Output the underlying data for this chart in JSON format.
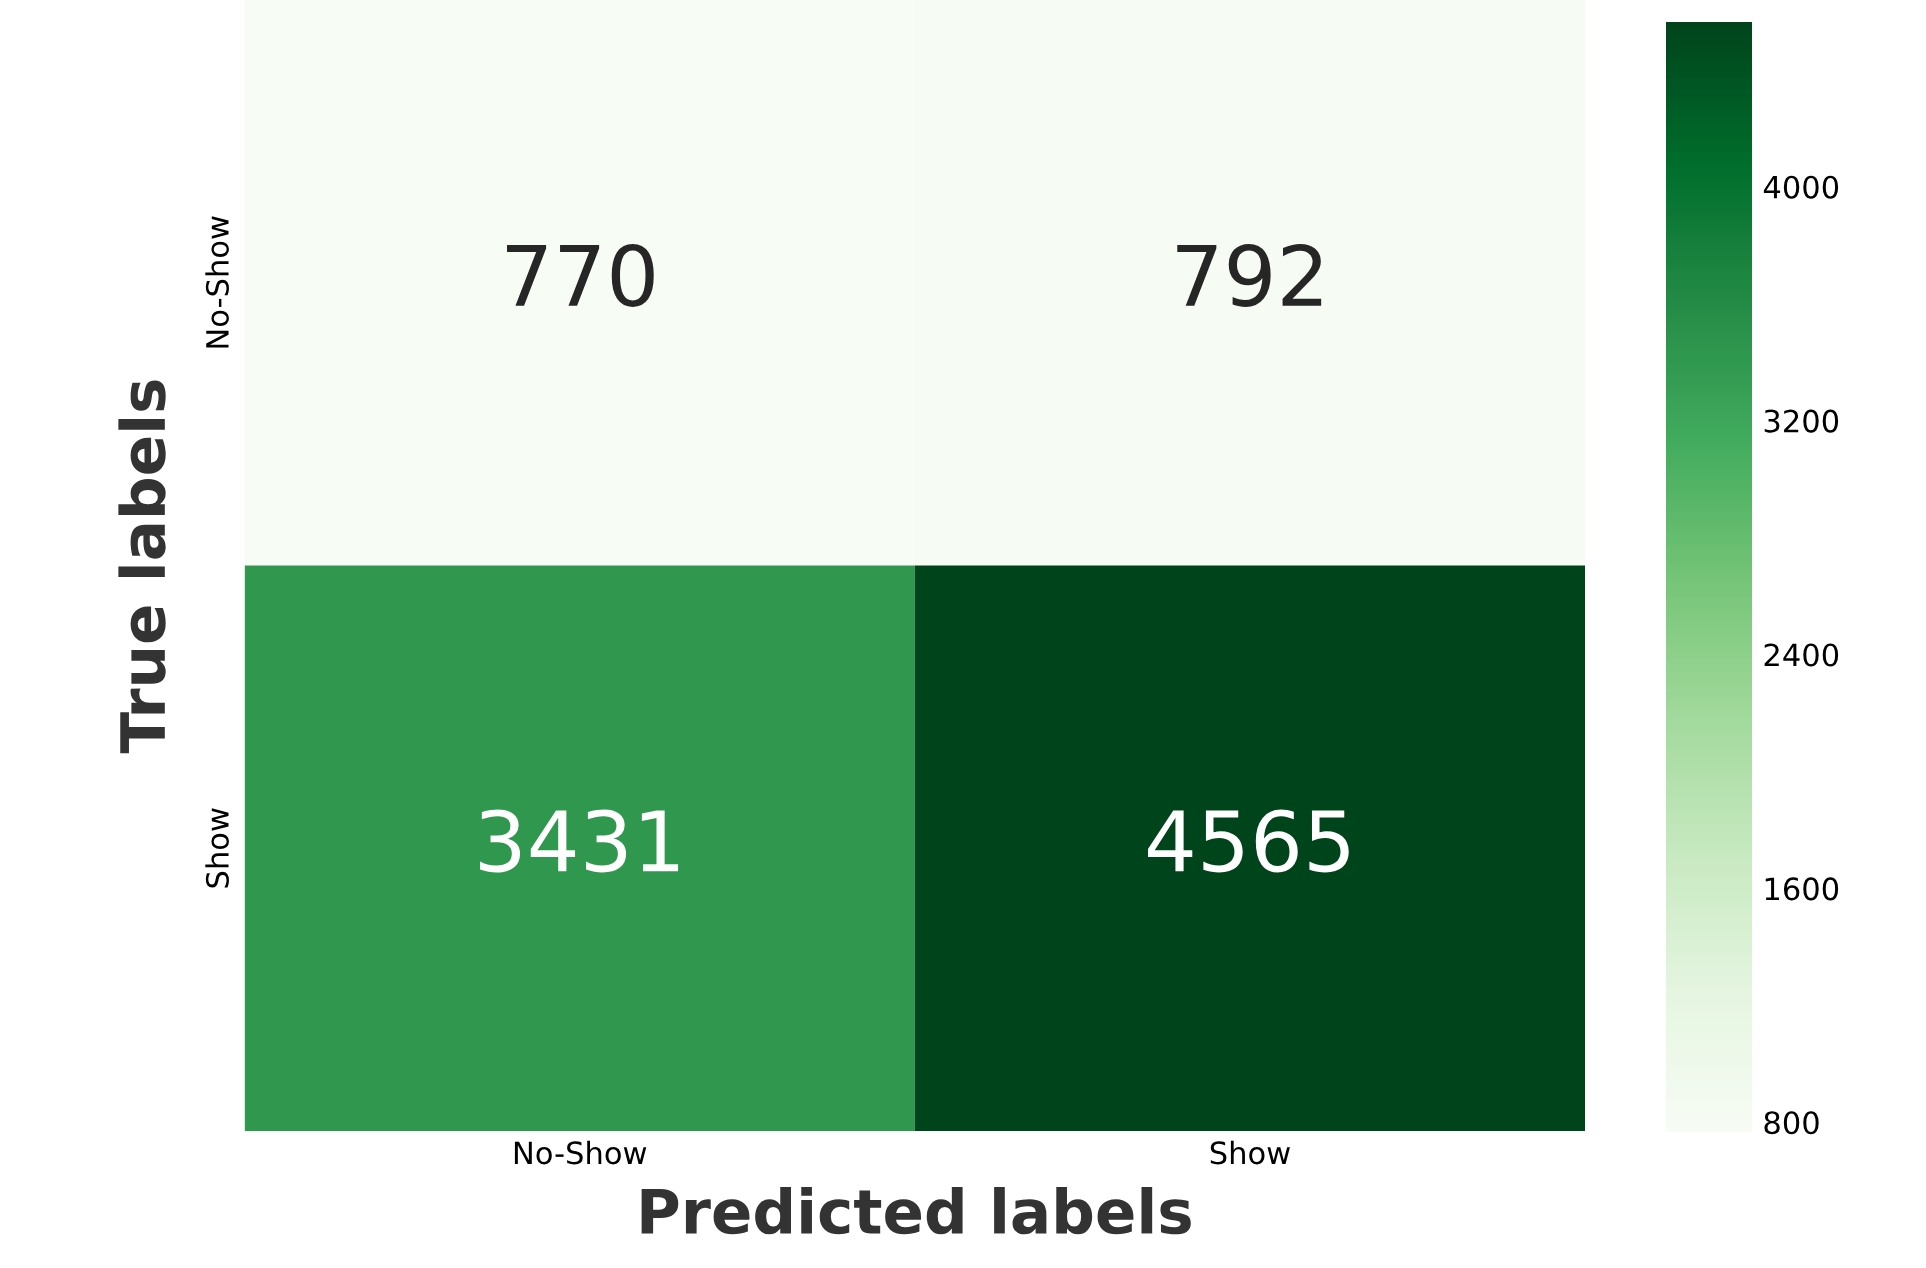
{
  "chart_data": {
    "type": "heatmap",
    "xlabel": "Predicted labels",
    "ylabel": "True labels",
    "categories": [
      "No-Show",
      "Show"
    ],
    "y_categories": [
      "No-Show",
      "Show"
    ],
    "cells": [
      [
        770,
        792
      ],
      [
        3431,
        4565
      ]
    ],
    "clim": [
      770,
      4565
    ],
    "cticks": [
      800,
      1600,
      2400,
      3200,
      4000
    ],
    "data_labels": true
  }
}
